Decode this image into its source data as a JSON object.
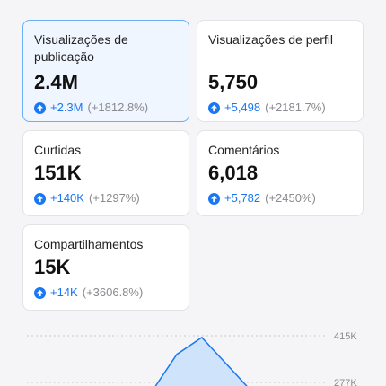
{
  "colors": {
    "accent": "#1877f2",
    "selected_card_bg": "#f0f6ff",
    "selected_card_border": "#6aaef5",
    "muted": "#8a8a8f"
  },
  "metrics": [
    {
      "title": "Visualizações de publicação",
      "value": "2.4M",
      "delta": "+2.3M",
      "pct": "(+1812.8%)",
      "selected": true
    },
    {
      "title": "Visualizações de perfil",
      "value": "5,750",
      "delta": "+5,498",
      "pct": "(+2181.7%)",
      "selected": false
    },
    {
      "title": "Curtidas",
      "value": "151K",
      "delta": "+140K",
      "pct": "(+1297%)",
      "selected": false
    },
    {
      "title": "Comentários",
      "value": "6,018",
      "delta": "+5,782",
      "pct": "(+2450%)",
      "selected": false
    },
    {
      "title": "Compartilhamentos",
      "value": "15K",
      "delta": "+14K",
      "pct": "(+3606.8%)",
      "selected": false
    }
  ],
  "chart": {
    "y_tick_labels": [
      "415K",
      "277K"
    ]
  },
  "chart_data": {
    "type": "area",
    "yticks": [
      415000,
      277000
    ],
    "x": [
      0,
      1,
      2,
      3,
      4,
      5,
      6,
      7,
      8,
      9,
      10,
      11,
      12
    ],
    "values": [
      0,
      0,
      0,
      0,
      0,
      250000,
      360000,
      410000,
      330000,
      250000,
      0,
      0,
      0
    ]
  }
}
